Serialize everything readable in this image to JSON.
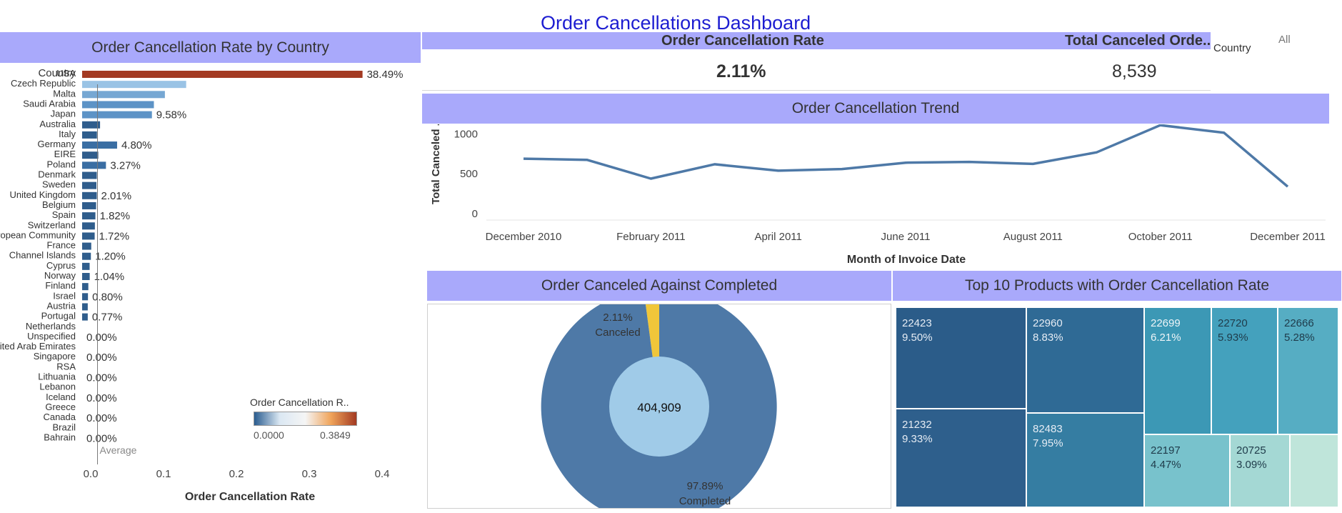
{
  "dashboard_title": "Order Cancellations Dashboard",
  "country_panel": {
    "title": "Order Cancellation Rate by Country",
    "column_header": "Country",
    "x_axis_title": "Order Cancellation Rate",
    "reference_label": "Average",
    "legend_title": "Order Cancellation R..",
    "legend_min": "0.0000",
    "legend_max": "0.3849"
  },
  "kpis": {
    "rate_title": "Order Cancellation Rate",
    "rate_value": "2.11%",
    "total_title": "Total Canceled Orde..",
    "total_value": "8,539"
  },
  "filter": {
    "label": "Country",
    "value": "All"
  },
  "trend_panel": {
    "title": "Order Cancellation Trend",
    "y_axis_title": "Total Canceled ..",
    "x_axis_title": "Month of Invoice Date"
  },
  "pie_panel": {
    "title": "Order Canceled Against Completed",
    "center_value": "404,909",
    "canceled_pct": "2.11%",
    "canceled_label": "Canceled",
    "completed_pct": "97.89%",
    "completed_label": "Completed"
  },
  "treemap_panel": {
    "title": "Top 10 Products with  Order Cancellation Rate",
    "cells": [
      {
        "code": "22423",
        "rate": "9.50%"
      },
      {
        "code": "21232",
        "rate": "9.33%"
      },
      {
        "code": "22960",
        "rate": "8.83%"
      },
      {
        "code": "82483",
        "rate": "7.95%"
      },
      {
        "code": "22699",
        "rate": "6.21%"
      },
      {
        "code": "22720",
        "rate": "5.93%"
      },
      {
        "code": "22666",
        "rate": "5.28%"
      },
      {
        "code": "22197",
        "rate": "4.47%"
      },
      {
        "code": "20725",
        "rate": "3.09%"
      },
      {
        "code": "",
        "rate": ""
      }
    ]
  },
  "colors": {
    "band": "#a9a9fb",
    "title_blue": "#1d1dd1",
    "usa_bar": "#a33a22",
    "line": "#4e79a7",
    "canceled": "#f0c63a",
    "completed": "#4e79a7",
    "center": "#a0cbe8"
  },
  "chart_data": [
    {
      "type": "bar",
      "orientation": "horizontal",
      "title": "Order Cancellation Rate by Country",
      "xlabel": "Order Cancellation Rate",
      "ylabel": "Country",
      "xlim": [
        0,
        0.45
      ],
      "x_ticks": [
        "0.0",
        "0.1",
        "0.2",
        "0.3",
        "0.4"
      ],
      "average": 0.0211,
      "categories": [
        "USA",
        "Czech Republic",
        "Malta",
        "Saudi Arabia",
        "Japan",
        "Australia",
        "Italy",
        "Germany",
        "EIRE",
        "Poland",
        "Denmark",
        "Sweden",
        "United Kingdom",
        "Belgium",
        "Spain",
        "Switzerland",
        "European Community",
        "France",
        "Channel Islands",
        "Cyprus",
        "Norway",
        "Finland",
        "Israel",
        "Austria",
        "Portugal",
        "Netherlands",
        "Unspecified",
        "United Arab Emirates",
        "Singapore",
        "RSA",
        "Lithuania",
        "Lebanon",
        "Iceland",
        "Greece",
        "Canada",
        "Brazil",
        "Bahrain"
      ],
      "values": [
        0.3849,
        0.1428,
        0.1136,
        0.0985,
        0.0958,
        0.0246,
        0.0203,
        0.048,
        0.0222,
        0.0327,
        0.0201,
        0.0196,
        0.0201,
        0.0192,
        0.0182,
        0.0175,
        0.0172,
        0.0125,
        0.012,
        0.0103,
        0.0104,
        0.0085,
        0.008,
        0.0077,
        0.0077,
        0,
        0,
        0,
        0,
        0,
        0,
        0,
        0,
        0,
        0,
        0,
        0
      ],
      "data_labels": [
        "38.49%",
        "",
        "",
        "",
        "9.58%",
        "",
        "",
        "4.80%",
        "",
        "3.27%",
        "",
        "",
        "2.01%",
        "",
        "1.82%",
        "",
        "1.72%",
        "",
        "1.20%",
        "",
        "1.04%",
        "",
        "0.80%",
        "",
        "0.77%",
        "",
        "0.00%",
        "",
        "0.00%",
        "",
        "0.00%",
        "",
        "0.00%",
        "",
        "0.00%",
        "",
        "0.00%"
      ],
      "colorscale": [
        "#2a5c8f",
        "#dbe8f3",
        "#f5f5f5",
        "#f0a45a",
        "#a33a22"
      ]
    },
    {
      "type": "line",
      "title": "Order Cancellation Trend",
      "xlabel": "Month of Invoice Date",
      "ylabel": "Total Canceled ..",
      "ylim": [
        0,
        1150
      ],
      "y_ticks": [
        "0",
        "500",
        "1000"
      ],
      "x_ticks": [
        "December 2010",
        "February 2011",
        "April 2011",
        "June 2011",
        "August 2011",
        "October 2011",
        "December 2011"
      ],
      "x": [
        "December 2010",
        "January 2011",
        "February 2011",
        "March 2011",
        "April 2011",
        "May 2011",
        "June 2011",
        "July 2011",
        "August 2011",
        "September 2011",
        "October 2011",
        "November 2011",
        "December 2011"
      ],
      "values": [
        680,
        665,
        430,
        610,
        530,
        550,
        630,
        640,
        615,
        760,
        1100,
        1005,
        330
      ]
    },
    {
      "type": "pie",
      "title": "Order Canceled Against Completed",
      "labels": [
        "Canceled",
        "Completed"
      ],
      "values": [
        2.11,
        97.89
      ],
      "total": "404,909"
    },
    {
      "type": "treemap",
      "title": "Top 10 Products with  Order Cancellation Rate",
      "labels": [
        "22423",
        "21232",
        "22960",
        "82483",
        "22699",
        "22720",
        "22666",
        "22197",
        "20725"
      ],
      "values": [
        9.5,
        9.33,
        8.83,
        7.95,
        6.21,
        5.93,
        5.28,
        4.47,
        3.09
      ]
    }
  ]
}
